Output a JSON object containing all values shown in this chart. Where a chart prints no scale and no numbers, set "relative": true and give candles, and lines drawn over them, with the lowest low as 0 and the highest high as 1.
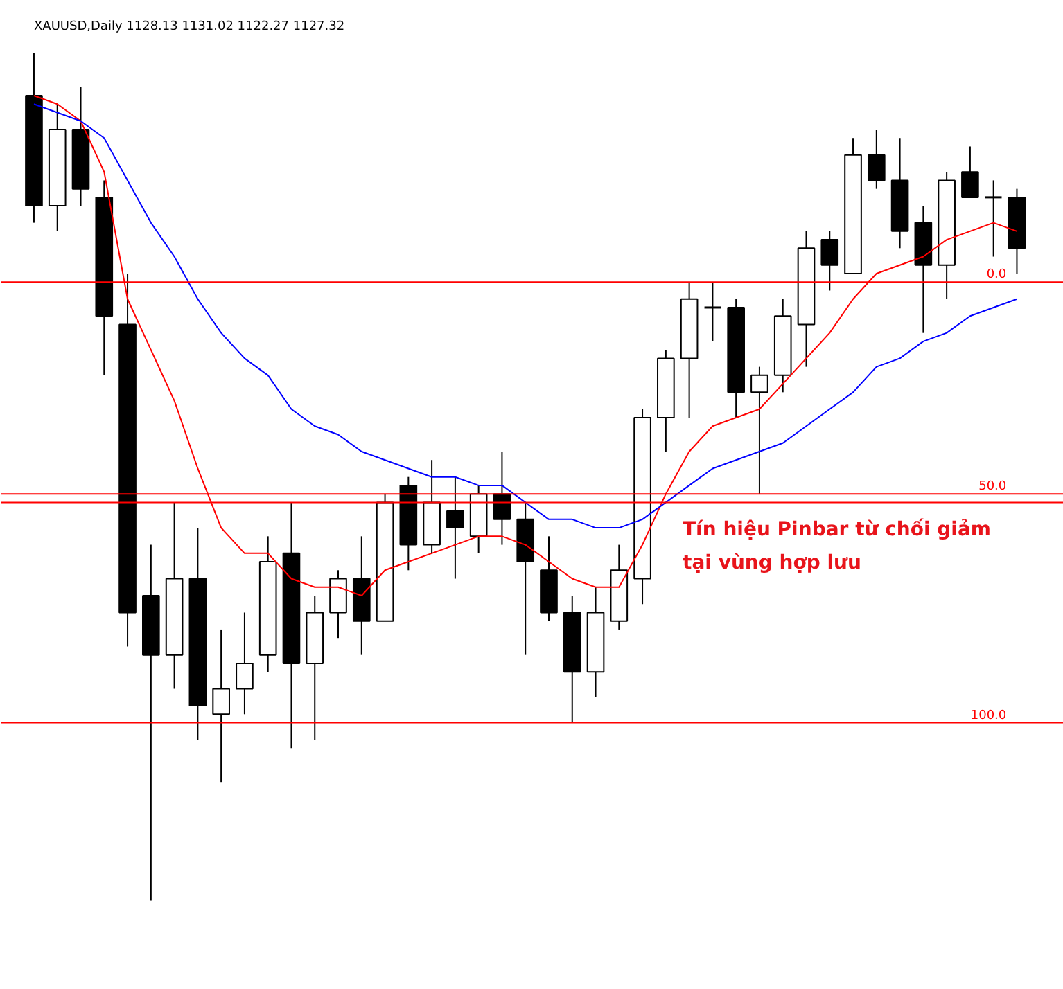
{
  "chart_data": {
    "type": "candlestick",
    "title": "XAUUSD,Daily    1128.13 1131.02 1122.27 1127.32",
    "relative": true,
    "grid": false,
    "tick_labels": false,
    "categories": [
      null,
      null,
      null,
      null,
      null,
      null,
      null,
      null,
      null,
      null,
      null,
      null,
      null,
      null,
      null,
      null,
      null,
      null,
      null,
      null,
      null,
      null,
      null,
      null,
      null,
      null,
      null,
      null,
      null,
      null,
      null,
      null,
      null,
      null,
      null,
      null,
      null,
      null,
      null,
      null,
      null,
      null,
      null
    ],
    "ohlc": [
      [
        0.95,
        1.0,
        0.8,
        0.82
      ],
      [
        0.82,
        0.94,
        0.79,
        0.91
      ],
      [
        0.91,
        0.96,
        0.82,
        0.84
      ],
      [
        0.83,
        0.85,
        0.62,
        0.69
      ],
      [
        0.68,
        0.74,
        0.3,
        0.34
      ],
      [
        0.36,
        0.42,
        0.0,
        0.29
      ],
      [
        0.29,
        0.47,
        0.25,
        0.38
      ],
      [
        0.38,
        0.44,
        0.19,
        0.23
      ],
      [
        0.22,
        0.32,
        0.14,
        0.25
      ],
      [
        0.25,
        0.34,
        0.22,
        0.28
      ],
      [
        0.29,
        0.43,
        0.27,
        0.4
      ],
      [
        0.41,
        0.47,
        0.18,
        0.28
      ],
      [
        0.28,
        0.36,
        0.19,
        0.34
      ],
      [
        0.34,
        0.39,
        0.31,
        0.38
      ],
      [
        0.38,
        0.43,
        0.29,
        0.33
      ],
      [
        0.33,
        0.48,
        0.33,
        0.47
      ],
      [
        0.49,
        0.5,
        0.39,
        0.42
      ],
      [
        0.42,
        0.52,
        0.41,
        0.47
      ],
      [
        0.46,
        0.5,
        0.38,
        0.44
      ],
      [
        0.43,
        0.49,
        0.41,
        0.48
      ],
      [
        0.48,
        0.53,
        0.42,
        0.45
      ],
      [
        0.45,
        0.47,
        0.29,
        0.4
      ],
      [
        0.39,
        0.43,
        0.33,
        0.34
      ],
      [
        0.34,
        0.36,
        0.21,
        0.27
      ],
      [
        0.27,
        0.37,
        0.24,
        0.34
      ],
      [
        0.33,
        0.42,
        0.32,
        0.39
      ],
      [
        0.38,
        0.58,
        0.35,
        0.57
      ],
      [
        0.57,
        0.65,
        0.53,
        0.64
      ],
      [
        0.64,
        0.73,
        0.57,
        0.71
      ],
      [
        0.7,
        0.73,
        0.66,
        0.7
      ],
      [
        0.7,
        0.71,
        0.57,
        0.6
      ],
      [
        0.6,
        0.63,
        0.48,
        0.62
      ],
      [
        0.62,
        0.71,
        0.6,
        0.69
      ],
      [
        0.68,
        0.79,
        0.63,
        0.77
      ],
      [
        0.78,
        0.79,
        0.72,
        0.75
      ],
      [
        0.74,
        0.9,
        0.74,
        0.88
      ],
      [
        0.88,
        0.91,
        0.84,
        0.85
      ],
      [
        0.85,
        0.9,
        0.77,
        0.79
      ],
      [
        0.8,
        0.82,
        0.67,
        0.75
      ],
      [
        0.75,
        0.86,
        0.71,
        0.85
      ],
      [
        0.86,
        0.89,
        0.83,
        0.83
      ],
      [
        0.83,
        0.85,
        0.76,
        0.83
      ],
      [
        0.83,
        0.84,
        0.74,
        0.77
      ]
    ],
    "series": [
      {
        "type": "line",
        "color": "#ff0000",
        "values": [
          0.95,
          0.94,
          0.92,
          0.86,
          0.71,
          0.65,
          0.59,
          0.51,
          0.44,
          0.41,
          0.41,
          0.38,
          0.37,
          0.37,
          0.36,
          0.39,
          0.4,
          0.41,
          0.42,
          0.43,
          0.43,
          0.42,
          0.4,
          0.38,
          0.37,
          0.37,
          0.42,
          0.48,
          0.53,
          0.56,
          0.57,
          0.58,
          0.61,
          0.64,
          0.67,
          0.71,
          0.74,
          0.75,
          0.76,
          0.78,
          0.79,
          0.8,
          0.79
        ]
      },
      {
        "type": "line",
        "color": "#0000ff",
        "values": [
          0.94,
          0.93,
          0.92,
          0.9,
          0.85,
          0.8,
          0.76,
          0.71,
          0.67,
          0.64,
          0.62,
          0.58,
          0.56,
          0.55,
          0.53,
          0.52,
          0.51,
          0.5,
          0.5,
          0.49,
          0.49,
          0.47,
          0.45,
          0.45,
          0.44,
          0.44,
          0.45,
          0.47,
          0.49,
          0.51,
          0.52,
          0.53,
          0.54,
          0.56,
          0.58,
          0.6,
          0.63,
          0.64,
          0.66,
          0.67,
          0.69,
          0.7,
          0.71
        ]
      }
    ],
    "ref_lines": [
      {
        "axis": "y",
        "value": 0.73,
        "color": "#ff0000"
      },
      {
        "axis": "y",
        "value": 0.48,
        "color": "#ff0000"
      },
      {
        "axis": "y",
        "value": 0.47,
        "color": "#ff0000"
      },
      {
        "axis": "y",
        "value": 0.21,
        "color": "#ff0000"
      }
    ],
    "annotations": [
      {
        "text": "0.0",
        "y": 0.73
      },
      {
        "text": "50.0",
        "y": 0.48
      },
      {
        "text": "100.0",
        "y": 0.21
      },
      "Tín hiệu Pinbar từ chối giảm\ntại vùng hợp lưu"
    ]
  }
}
